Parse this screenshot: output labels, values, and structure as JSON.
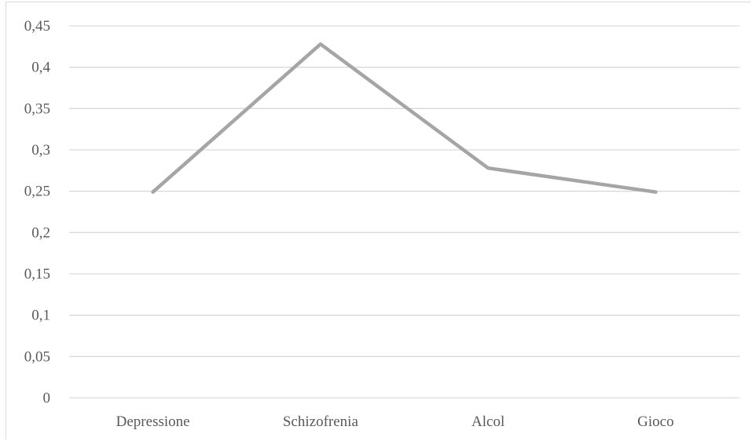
{
  "chart_data": {
    "type": "line",
    "title": "",
    "xlabel": "",
    "ylabel": "",
    "categories": [
      "Depressione",
      "Schizofrenia",
      "Alcol",
      "Gioco"
    ],
    "series": [
      {
        "values": [
          0.249,
          0.428,
          0.278,
          0.249
        ]
      }
    ],
    "ylim": [
      0,
      0.45
    ],
    "y_ticks": [
      "0",
      "0,05",
      "0,1",
      "0,15",
      "0,2",
      "0,25",
      "0,3",
      "0,35",
      "0,4",
      "0,45"
    ],
    "grid": true,
    "legend": "none",
    "colors": {
      "line": "#a5a5a5",
      "grid": "#d9d9d9",
      "text": "#595959"
    }
  }
}
